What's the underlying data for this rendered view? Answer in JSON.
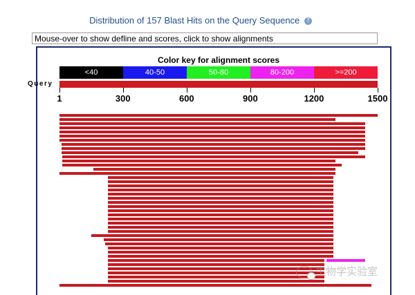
{
  "header": {
    "title": "Distribution of 157 Blast Hits on the Query Sequence",
    "help_icon": "question-circle-icon"
  },
  "defline_box": {
    "text": "Mouse-over to show defline and scores, click to show alignments"
  },
  "color_key": {
    "title": "Color key for alignment scores",
    "segments": [
      {
        "label": "<40",
        "color": "#000000",
        "text_color": "#ffffff"
      },
      {
        "label": "40-50",
        "color": "#1a1aee",
        "text_color": "#ffffff"
      },
      {
        "label": "50-80",
        "color": "#22ee22",
        "text_color": "#ffffff"
      },
      {
        "label": "80-200",
        "color": "#ee22ee",
        "text_color": "#ffffff"
      },
      {
        "label": ">=200",
        "color": "#ee1c3a",
        "text_color": "#ffffff"
      }
    ]
  },
  "query": {
    "label": "Query",
    "length": 1500,
    "ticks": [
      "1",
      "300",
      "600",
      "900",
      "1200",
      "1500"
    ],
    "tick_values": [
      1,
      300,
      600,
      900,
      1200,
      1500
    ],
    "bar_color": "#cc1a1f"
  },
  "hits": [
    {
      "start": 1,
      "end": 1500,
      "score_class": ">=200"
    },
    {
      "start": 1,
      "end": 1300,
      "score_class": ">=200"
    },
    {
      "start": 1,
      "end": 1440,
      "score_class": ">=200"
    },
    {
      "start": 1,
      "end": 1440,
      "score_class": ">=200"
    },
    {
      "start": 1,
      "end": 1440,
      "score_class": ">=200"
    },
    {
      "start": 1,
      "end": 1440,
      "score_class": ">=200"
    },
    {
      "start": 1,
      "end": 1440,
      "score_class": ">=200"
    },
    {
      "start": 10,
      "end": 1440,
      "score_class": ">=200"
    },
    {
      "start": 10,
      "end": 1440,
      "score_class": ">=200"
    },
    {
      "start": 10,
      "end": 1410,
      "score_class": ">=200"
    },
    {
      "start": 15,
      "end": 1440,
      "score_class": ">=200"
    },
    {
      "start": 15,
      "end": 1300,
      "score_class": ">=200"
    },
    {
      "start": 15,
      "end": 1330,
      "score_class": ">=200"
    },
    {
      "start": 160,
      "end": 1300,
      "score_class": ">=200"
    },
    {
      "start": 1,
      "end": 1300,
      "score_class": ">=200"
    },
    {
      "start": 230,
      "end": 1290,
      "score_class": ">=200"
    },
    {
      "start": 230,
      "end": 1290,
      "score_class": ">=200"
    },
    {
      "start": 230,
      "end": 1290,
      "score_class": ">=200"
    },
    {
      "start": 230,
      "end": 1290,
      "score_class": ">=200"
    },
    {
      "start": 230,
      "end": 1290,
      "score_class": ">=200"
    },
    {
      "start": 230,
      "end": 1290,
      "score_class": ">=200"
    },
    {
      "start": 230,
      "end": 1290,
      "score_class": ">=200"
    },
    {
      "start": 230,
      "end": 1290,
      "score_class": ">=200"
    },
    {
      "start": 230,
      "end": 1290,
      "score_class": ">=200"
    },
    {
      "start": 230,
      "end": 1290,
      "score_class": ">=200"
    },
    {
      "start": 230,
      "end": 1290,
      "score_class": ">=200"
    },
    {
      "start": 230,
      "end": 1290,
      "score_class": ">=200"
    },
    {
      "start": 230,
      "end": 1290,
      "score_class": ">=200"
    },
    {
      "start": 230,
      "end": 1290,
      "score_class": ">=200"
    },
    {
      "start": 150,
      "end": 1290,
      "score_class": ">=200"
    },
    {
      "start": 210,
      "end": 1290,
      "score_class": ">=200"
    },
    {
      "start": 215,
      "end": 1290,
      "score_class": ">=200"
    },
    {
      "start": 230,
      "end": 1290,
      "score_class": ">=200"
    },
    {
      "start": 230,
      "end": 1290,
      "score_class": ">=200"
    },
    {
      "start": 230,
      "end": 1290,
      "score_class": ">=200"
    },
    {
      "start": 230,
      "end": 1250,
      "score_class": ">=200"
    },
    {
      "start": 1260,
      "end": 1440,
      "score_class": "80-200"
    },
    {
      "start": 230,
      "end": 1250,
      "score_class": ">=200"
    },
    {
      "start": 230,
      "end": 1250,
      "score_class": ">=200"
    },
    {
      "start": 230,
      "end": 1250,
      "score_class": ">=200"
    },
    {
      "start": 230,
      "end": 1250,
      "score_class": ">=200"
    },
    {
      "start": 230,
      "end": 1250,
      "score_class": ">=200"
    },
    {
      "start": 1,
      "end": 1470,
      "score_class": ">=200"
    }
  ],
  "watermark": {
    "text": "生物学实验室"
  }
}
